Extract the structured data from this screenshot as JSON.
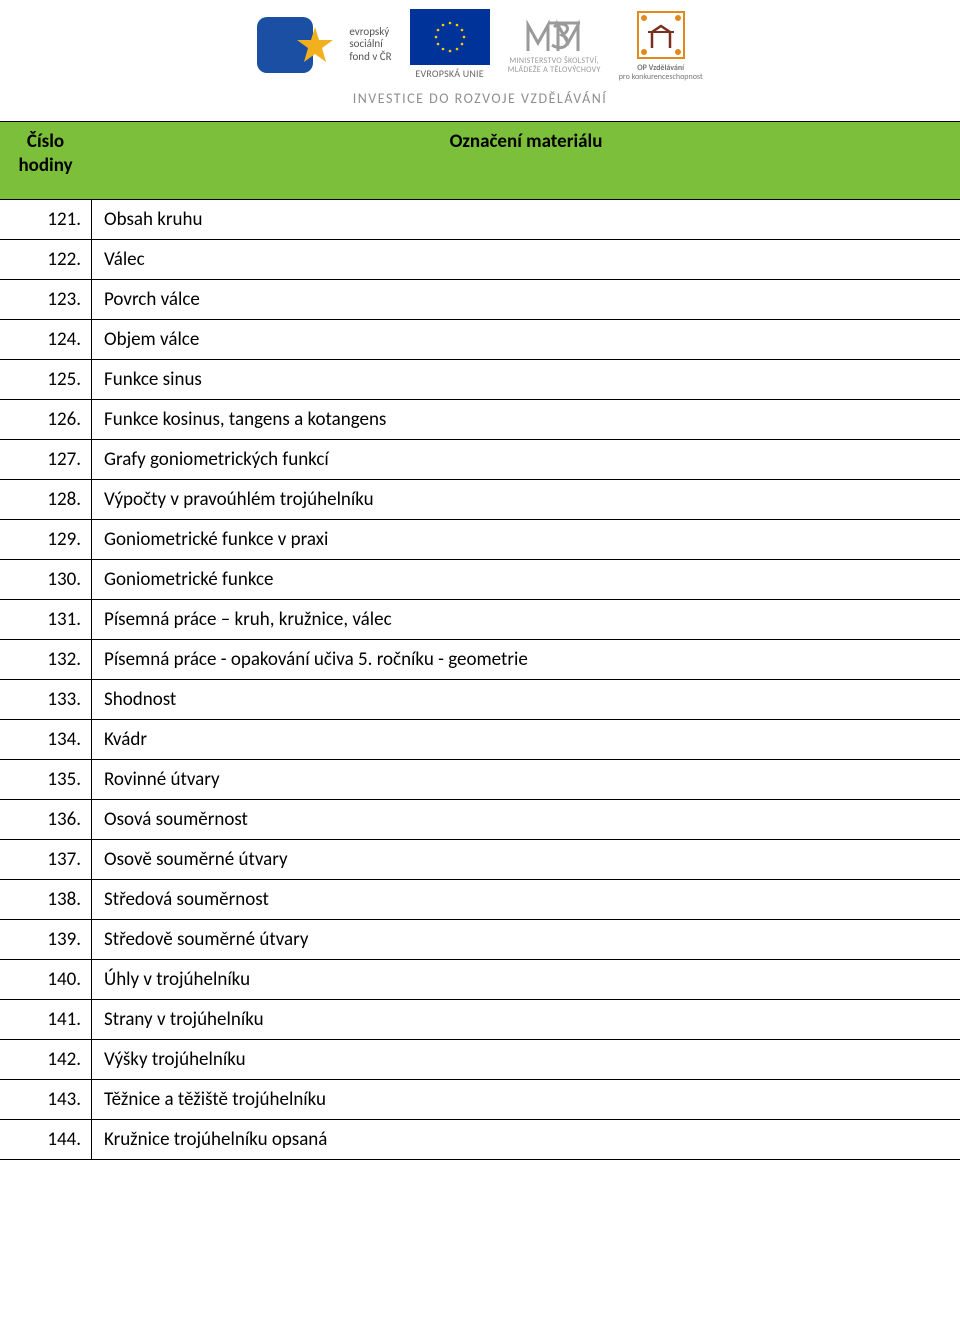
{
  "banner": {
    "esf_lines": [
      "evropský",
      "sociální",
      "fond v ČR"
    ],
    "eu_label": "EVROPSKÁ UNIE",
    "msmt_line1": "MINISTERSTVO ŠKOLSTVÍ,",
    "msmt_line2": "MLÁDEŽE A TĚLOVÝCHOVY",
    "opvk_line1": "OP Vzdělávání",
    "opvk_line2": "pro konkurenceschopnost",
    "tagline": "INVESTICE DO ROZVOJE VZDĚLÁVÁNÍ"
  },
  "table": {
    "header_left_line1": "Číslo",
    "header_left_line2": "hodiny",
    "header_right": "Označení materiálu",
    "rows": [
      {
        "num": "121.",
        "label": "Obsah kruhu"
      },
      {
        "num": "122.",
        "label": "Válec"
      },
      {
        "num": "123.",
        "label": "Povrch válce"
      },
      {
        "num": "124.",
        "label": "Objem válce"
      },
      {
        "num": "125.",
        "label": "Funkce sinus"
      },
      {
        "num": "126.",
        "label": "Funkce kosinus, tangens a kotangens"
      },
      {
        "num": "127.",
        "label": "Grafy goniometrických funkcí"
      },
      {
        "num": "128.",
        "label": "Výpočty v pravoúhlém trojúhelníku"
      },
      {
        "num": "129.",
        "label": "Goniometrické funkce v praxi"
      },
      {
        "num": "130.",
        "label": "Goniometrické funkce"
      },
      {
        "num": "131.",
        "label": "Písemná práce – kruh, kružnice, válec"
      },
      {
        "num": "132.",
        "label": "Písemná práce - opakování učiva 5. ročníku - geometrie"
      },
      {
        "num": "133.",
        "label": "Shodnost"
      },
      {
        "num": "134.",
        "label": "Kvádr"
      },
      {
        "num": "135.",
        "label": "Rovinné útvary"
      },
      {
        "num": "136.",
        "label": "Osová souměrnost"
      },
      {
        "num": "137.",
        "label": "Osově souměrné útvary"
      },
      {
        "num": "138.",
        "label": "Středová souměrnost"
      },
      {
        "num": "139.",
        "label": "Středově souměrné útvary"
      },
      {
        "num": "140.",
        "label": "Úhly v trojúhelníku"
      },
      {
        "num": "141.",
        "label": "Strany v trojúhelníku"
      },
      {
        "num": "142.",
        "label": "Výšky trojúhelníku"
      },
      {
        "num": "143.",
        "label": "Těžnice a těžiště trojúhelníku"
      },
      {
        "num": "144.",
        "label": "Kružnice trojúhelníku opsaná"
      }
    ]
  },
  "colors": {
    "header_bg": "#7bbf3a",
    "border": "#000000",
    "text": "#000000",
    "tagline": "#8f8f8f"
  }
}
